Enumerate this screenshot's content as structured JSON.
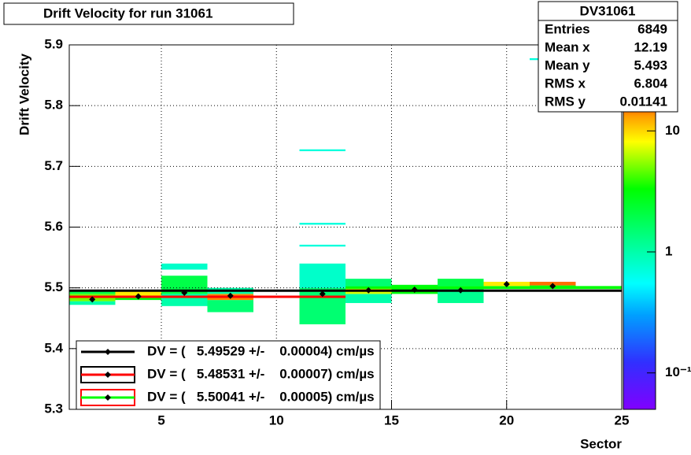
{
  "chart_data": {
    "type": "colz",
    "title": "Drift Velocity for run 31061",
    "x_label": "Sector",
    "y_label": "Drift Velocity",
    "xlim": [
      1,
      25
    ],
    "ylim": [
      5.3,
      5.9
    ],
    "xticks": [
      5,
      10,
      15,
      20,
      25
    ],
    "yticks": [
      5.3,
      5.4,
      5.5,
      5.6,
      5.7,
      5.8,
      5.9
    ],
    "grid": true,
    "zlim": [
      0.05,
      20
    ],
    "zlog": true,
    "zticks": [
      {
        "value": 0.1,
        "label": "10⁻¹"
      },
      1,
      10
    ],
    "cells": [
      {
        "x": [
          1,
          3
        ],
        "y": [
          5.472,
          5.478
        ],
        "z": 1
      },
      {
        "x": [
          1,
          3
        ],
        "y": [
          5.478,
          5.49
        ],
        "z": 5
      },
      {
        "x": [
          1,
          3
        ],
        "y": [
          5.49,
          5.495
        ],
        "z": 2
      },
      {
        "x": [
          3,
          5
        ],
        "y": [
          5.48,
          5.487
        ],
        "z": 3
      },
      {
        "x": [
          3,
          5
        ],
        "y": [
          5.487,
          5.495
        ],
        "z": 9
      },
      {
        "x": [
          5,
          7
        ],
        "y": [
          5.47,
          5.49
        ],
        "z": 1
      },
      {
        "x": [
          5,
          7
        ],
        "y": [
          5.49,
          5.52
        ],
        "z": 2
      },
      {
        "x": [
          5,
          7
        ],
        "y": [
          5.53,
          5.54
        ],
        "z": 0.8
      },
      {
        "x": [
          7,
          9
        ],
        "y": [
          5.46,
          5.48
        ],
        "z": 1.5
      },
      {
        "x": [
          7,
          9
        ],
        "y": [
          5.48,
          5.49
        ],
        "z": 14
      },
      {
        "x": [
          7,
          9
        ],
        "y": [
          5.49,
          5.5
        ],
        "z": 1
      },
      {
        "x": [
          11,
          13
        ],
        "y": [
          5.44,
          5.5
        ],
        "z": 1.5
      },
      {
        "x": [
          11,
          13
        ],
        "y": [
          5.5,
          5.54
        ],
        "z": 0.8
      },
      {
        "x": [
          11,
          13
        ],
        "y": [
          5.568,
          5.571
        ],
        "z": 0.7
      },
      {
        "x": [
          11,
          13
        ],
        "y": [
          5.604,
          5.607
        ],
        "z": 0.7
      },
      {
        "x": [
          11,
          13
        ],
        "y": [
          5.725,
          5.728
        ],
        "z": 0.7
      },
      {
        "x": [
          13,
          15
        ],
        "y": [
          5.475,
          5.49
        ],
        "z": 1
      },
      {
        "x": [
          13,
          15
        ],
        "y": [
          5.49,
          5.5
        ],
        "z": 7
      },
      {
        "x": [
          13,
          15
        ],
        "y": [
          5.5,
          5.515
        ],
        "z": 1.5
      },
      {
        "x": [
          15,
          17
        ],
        "y": [
          5.49,
          5.505
        ],
        "z": 3
      },
      {
        "x": [
          17,
          19
        ],
        "y": [
          5.475,
          5.495
        ],
        "z": 1.2
      },
      {
        "x": [
          17,
          19
        ],
        "y": [
          5.495,
          5.515
        ],
        "z": 2
      },
      {
        "x": [
          19,
          21
        ],
        "y": [
          5.498,
          5.503
        ],
        "z": 3
      },
      {
        "x": [
          19,
          21
        ],
        "y": [
          5.503,
          5.51
        ],
        "z": 9
      },
      {
        "x": [
          21,
          23
        ],
        "y": [
          5.498,
          5.504
        ],
        "z": 3
      },
      {
        "x": [
          21,
          23
        ],
        "y": [
          5.504,
          5.51
        ],
        "z": 15
      },
      {
        "x": [
          21,
          23
        ],
        "y": [
          5.875,
          5.878
        ],
        "z": 0.7
      },
      {
        "x": [
          23,
          25
        ],
        "y": [
          5.498,
          5.503
        ],
        "z": 3
      }
    ],
    "profile": {
      "x": [
        2,
        4,
        6,
        8,
        12,
        14,
        16,
        18,
        20,
        22
      ],
      "values": [
        5.481,
        5.486,
        5.492,
        5.487,
        5.49,
        5.496,
        5.497,
        5.496,
        5.506,
        5.503
      ],
      "color": "#000000"
    },
    "fits": [
      {
        "name": "DV = (   5.49529 +/-    0.00004) cm/µs",
        "value": 5.49529,
        "range": [
          1,
          25
        ],
        "color": "#000000"
      },
      {
        "name": "DV = (   5.48531 +/-    0.00007) cm/µs",
        "value": 5.48531,
        "range": [
          1,
          13
        ],
        "color": "#ff0000",
        "box_color": "#000000"
      },
      {
        "name": "DV = (   5.50041 +/-    0.00005) cm/µs",
        "value": 5.50041,
        "range": [
          13,
          25
        ],
        "color": "#00ff00",
        "box_color": "#ff0000"
      }
    ],
    "stats": {
      "title": "DV31061",
      "rows": [
        {
          "label": "Entries",
          "value": "6849"
        },
        {
          "label": "Mean x",
          "value": "12.19"
        },
        {
          "label": "Mean y",
          "value": "5.493"
        },
        {
          "label": "RMS x",
          "value": "6.804"
        },
        {
          "label": "RMS y",
          "value": "0.01141"
        }
      ]
    }
  }
}
